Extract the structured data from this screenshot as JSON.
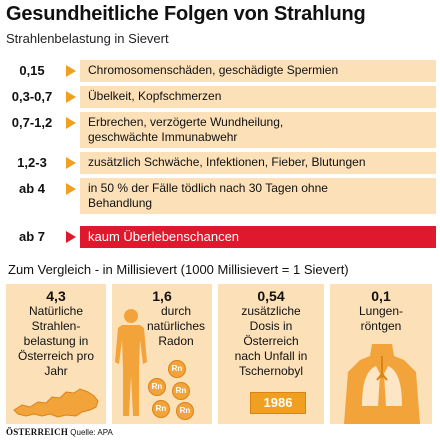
{
  "header": {
    "title": "Gesundheitliche Folgen von Strahlung",
    "subtitle": "Strahlenbelastung in Sievert"
  },
  "colors": {
    "band": "#fbe0b8",
    "arrow": "#f0a020",
    "danger": "#e0182d",
    "figure": "#f2a33a"
  },
  "doses": [
    {
      "value": "0,15",
      "effect": "Chromosomenschäden, geschädigte Spermien",
      "severity": "normal"
    },
    {
      "value": "0,3-0,7",
      "effect": "Übelkeit, Kopfschmerzen",
      "severity": "normal"
    },
    {
      "value": "0,7-1,2",
      "effect": "Erbrechen, verzögerte Wundheilung, geschwächte Immunabwehr",
      "severity": "normal"
    },
    {
      "value": "1,2-3",
      "effect": "zusätzlich Schwäche, Infektionen, Fieber, Blutungen",
      "severity": "normal"
    },
    {
      "value": "ab 4",
      "effect": "in 50 % der Fälle tödlich nach 30 Tagen ohne Behandlung",
      "severity": "normal"
    },
    {
      "value": "ab 7",
      "effect": "kaum Überlebenschancen",
      "severity": "critical"
    }
  ],
  "comparison": {
    "heading": "Zum Vergleich - in Millisievert (1000 Millisievert = 1 Sievert)",
    "cards": [
      {
        "value": "4,3",
        "text": "Natürliche Strahlen- belastung in Österreich pro Jahr",
        "icon": "austria-map-icon"
      },
      {
        "value": "1,6",
        "text": "durch natürliches Radon",
        "icon": "human-figure-icon"
      },
      {
        "value": "0,54",
        "text": "zusätzliche Dosis in Österreich nach Unfall in Tschernobyl",
        "icon": "year-badge"
      },
      {
        "value": "0,1",
        "text": "Lungen- röntgen",
        "icon": "lungs-xray-icon"
      }
    ],
    "radon_label": "Rn",
    "year": "1986"
  },
  "footer": {
    "brand": "ÖSTERREICH",
    "source": "Quelle: APA"
  }
}
